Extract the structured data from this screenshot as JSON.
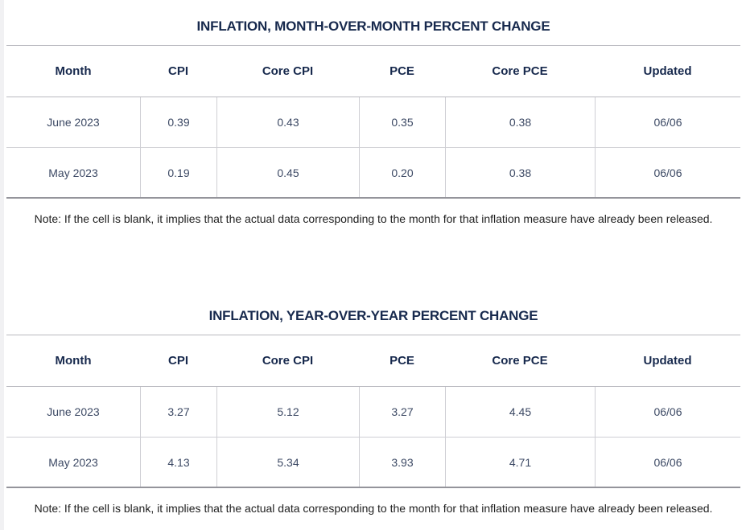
{
  "page": {
    "background": "#ffffff",
    "left_edge_color": "#f1f1f3"
  },
  "colors": {
    "heading_text": "#17294d",
    "cell_text": "#3c4964",
    "note_text": "#1f1f1f",
    "rule": "#b9b9bf",
    "rule_light": "#cfcfd4",
    "rule_bottom": "#94949b"
  },
  "tables": [
    {
      "title": "INFLATION, MONTH-OVER-MONTH PERCENT CHANGE",
      "columns": [
        "Month",
        "CPI",
        "Core CPI",
        "PCE",
        "Core PCE",
        "Updated"
      ],
      "rows": [
        [
          "June 2023",
          "0.39",
          "0.43",
          "0.35",
          "0.38",
          "06/06"
        ],
        [
          "May 2023",
          "0.19",
          "0.45",
          "0.20",
          "0.38",
          "06/06"
        ]
      ],
      "note": "Note: If the cell is blank, it implies that the actual data corresponding to the month for that inflation measure have already been released."
    },
    {
      "title": "INFLATION, YEAR-OVER-YEAR PERCENT CHANGE",
      "columns": [
        "Month",
        "CPI",
        "Core CPI",
        "PCE",
        "Core PCE",
        "Updated"
      ],
      "rows": [
        [
          "June 2023",
          "3.27",
          "5.12",
          "3.27",
          "4.45",
          "06/06"
        ],
        [
          "May 2023",
          "4.13",
          "5.34",
          "3.93",
          "4.71",
          "06/06"
        ]
      ],
      "note": "Note: If the cell is blank, it implies that the actual data corresponding to the month for that inflation measure have already been released."
    }
  ]
}
